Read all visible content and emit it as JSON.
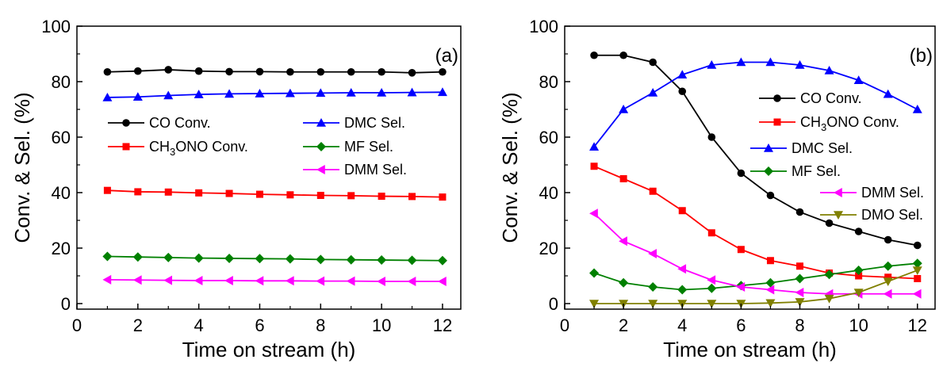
{
  "chart_data": [
    {
      "type": "line",
      "panel_label": "(a)",
      "xlabel": "Time on stream (h)",
      "ylabel": "Conv. & Sel. (%)",
      "xlim": [
        0,
        12.6
      ],
      "ylim": [
        -2,
        100
      ],
      "xticks": [
        0,
        2,
        4,
        6,
        8,
        10,
        12
      ],
      "yticks": [
        0,
        20,
        40,
        60,
        80,
        100
      ],
      "grid": false,
      "legend_position": "middle (two columns)",
      "x": [
        1,
        2,
        3,
        4,
        5,
        6,
        7,
        8,
        9,
        10,
        11,
        12
      ],
      "series": [
        {
          "name": "CO Conv.",
          "color": "#000000",
          "marker": "circle",
          "values": [
            83.5,
            83.8,
            84.3,
            83.8,
            83.6,
            83.6,
            83.5,
            83.5,
            83.5,
            83.5,
            83.2,
            83.5
          ]
        },
        {
          "name": "DMC Sel.",
          "color": "#0000ff",
          "marker": "triangle-up",
          "values": [
            74.3,
            74.5,
            75.0,
            75.4,
            75.6,
            75.7,
            75.8,
            75.9,
            76.0,
            76.0,
            76.1,
            76.2
          ]
        },
        {
          "name": "CH3ONO Conv.",
          "color": "#ff0000",
          "marker": "square",
          "values": [
            40.8,
            40.3,
            40.2,
            39.9,
            39.7,
            39.4,
            39.2,
            39.0,
            38.9,
            38.7,
            38.6,
            38.4
          ]
        },
        {
          "name": "MF Sel.",
          "color": "#008000",
          "marker": "diamond",
          "values": [
            17.0,
            16.8,
            16.6,
            16.4,
            16.3,
            16.2,
            16.1,
            15.9,
            15.8,
            15.7,
            15.6,
            15.5
          ]
        },
        {
          "name": "DMM Sel.",
          "color": "#ff00ff",
          "marker": "triangle-left",
          "values": [
            8.6,
            8.5,
            8.4,
            8.3,
            8.3,
            8.2,
            8.2,
            8.1,
            8.1,
            8.0,
            8.0,
            8.0
          ]
        }
      ]
    },
    {
      "type": "line",
      "panel_label": "(b)",
      "xlabel": "Time on stream (h)",
      "ylabel": "Conv. & Sel. (%)",
      "xlim": [
        0,
        12.6
      ],
      "ylim": [
        -2,
        100
      ],
      "xticks": [
        0,
        2,
        4,
        6,
        8,
        10,
        12
      ],
      "yticks": [
        0,
        20,
        40,
        60,
        80,
        100
      ],
      "grid": false,
      "legend_position": "right",
      "x": [
        1,
        2,
        3,
        4,
        5,
        6,
        7,
        8,
        9,
        10,
        11,
        12
      ],
      "series": [
        {
          "name": "CO Conv.",
          "color": "#000000",
          "marker": "circle",
          "values": [
            89.5,
            89.5,
            87.0,
            76.5,
            60.0,
            47.0,
            39.0,
            33.0,
            29.0,
            26.0,
            23.0,
            21.0
          ]
        },
        {
          "name": "CH3ONO Conv.",
          "color": "#ff0000",
          "marker": "square",
          "values": [
            49.5,
            45.0,
            40.5,
            33.5,
            25.5,
            19.5,
            15.5,
            13.5,
            11.0,
            10.0,
            9.5,
            9.0
          ]
        },
        {
          "name": "DMC Sel.",
          "color": "#0000ff",
          "marker": "triangle-up",
          "values": [
            56.5,
            70.0,
            76.0,
            82.5,
            86.0,
            87.0,
            87.0,
            86.0,
            84.0,
            80.5,
            75.5,
            70.0
          ]
        },
        {
          "name": "MF Sel.",
          "color": "#008000",
          "marker": "diamond",
          "values": [
            11.0,
            7.5,
            6.0,
            5.0,
            5.5,
            6.5,
            7.5,
            9.0,
            10.5,
            12.0,
            13.5,
            14.5
          ]
        },
        {
          "name": "DMM Sel.",
          "color": "#ff00ff",
          "marker": "triangle-left",
          "values": [
            32.5,
            22.5,
            18.0,
            12.5,
            8.5,
            6.0,
            5.0,
            4.0,
            3.5,
            3.5,
            3.5,
            3.5
          ]
        },
        {
          "name": "DMO Sel.",
          "color": "#808000",
          "marker": "triangle-down",
          "values": [
            0.0,
            0.0,
            0.0,
            0.0,
            0.0,
            0.0,
            0.2,
            0.6,
            1.8,
            4.0,
            8.0,
            12.0
          ]
        }
      ]
    }
  ]
}
